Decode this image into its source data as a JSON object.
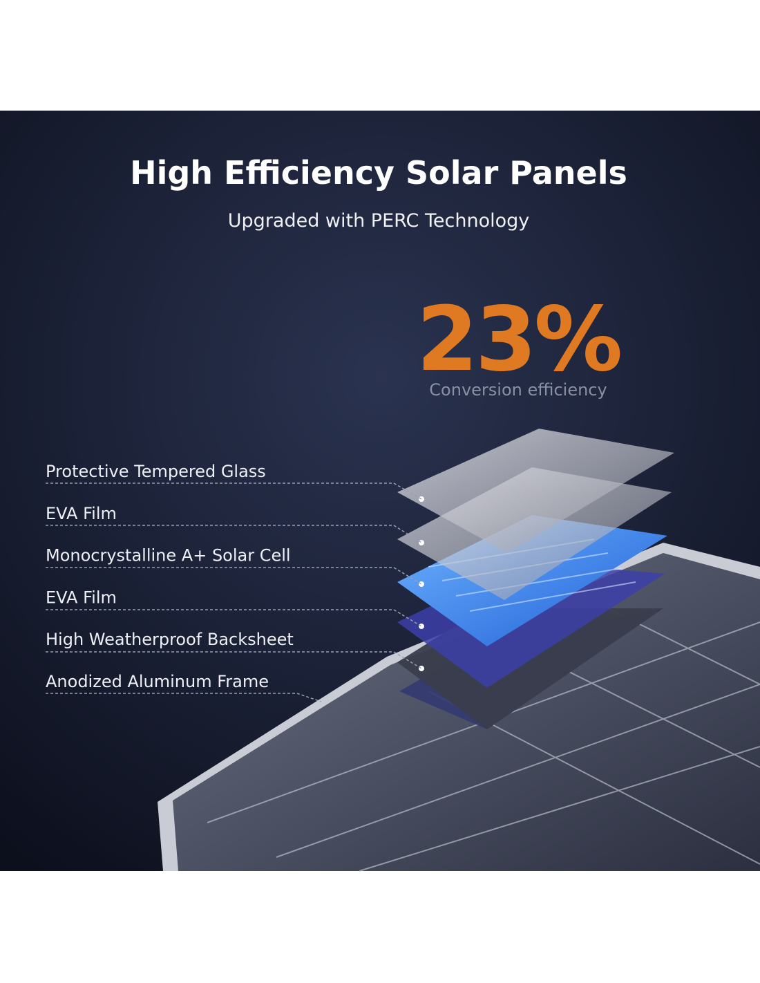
{
  "header": {
    "title": "High Efficiency Solar Panels",
    "subtitle": "Upgraded with PERC Technology"
  },
  "highlight": {
    "value": "23%",
    "caption": "Conversion efficiency"
  },
  "layers": [
    "Protective Tempered Glass",
    "EVA Film",
    "Monocrystalline A+ Solar Cell",
    "EVA Film",
    "High Weatherproof Backsheet",
    "Anodized Aluminum Frame"
  ]
}
